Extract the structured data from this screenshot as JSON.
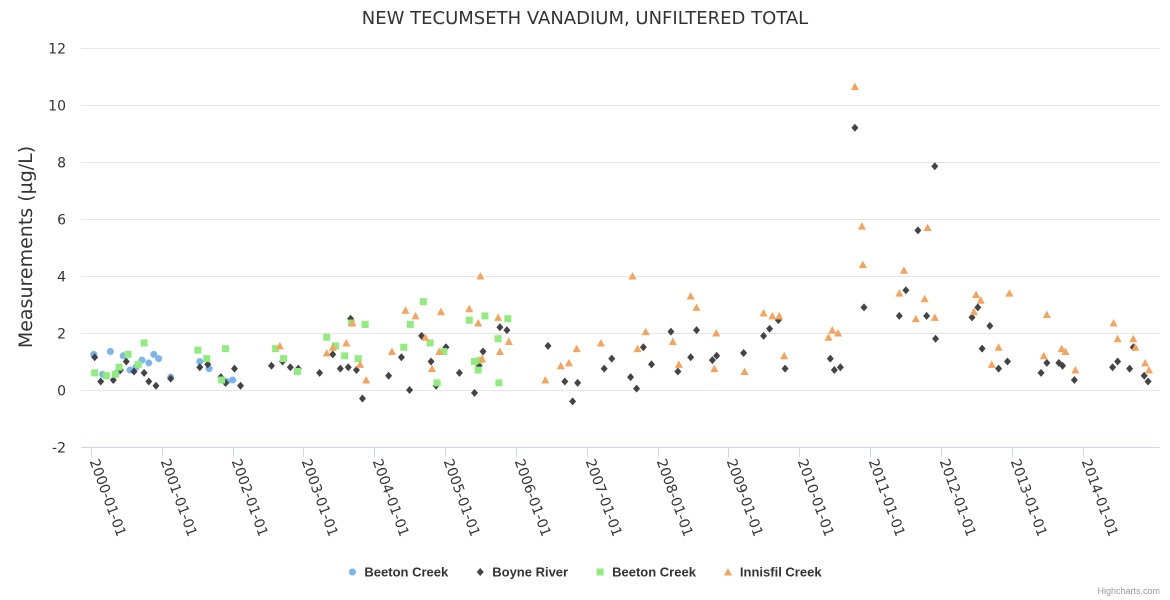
{
  "credits": "Highcharts.com",
  "chart_data": {
    "type": "scatter",
    "title": "NEW TECUMSETH VANADIUM, UNFILTERED TOTAL",
    "ylabel": "Measurements (µg/L)",
    "xlabel": "",
    "ylim": [
      -2,
      12
    ],
    "yticks": [
      -2,
      0,
      2,
      4,
      6,
      8,
      10,
      12
    ],
    "xlim": [
      "2000-01-01",
      "2014-12-15"
    ],
    "xticks": [
      "2000-01-01",
      "2001-01-01",
      "2002-01-01",
      "2003-01-01",
      "2004-01-01",
      "2005-01-01",
      "2006-01-01",
      "2007-01-01",
      "2008-01-01",
      "2009-01-01",
      "2010-01-01",
      "2011-01-01",
      "2012-01-01",
      "2013-01-01",
      "2014-01-01"
    ],
    "grid": true,
    "legend_position": "bottom-center",
    "series": [
      {
        "name": "Beeton Creek",
        "marker": "circle",
        "color": "#7cb5ec",
        "points": [
          [
            "2000-01-15",
            1.25
          ],
          [
            "2000-03-01",
            0.55
          ],
          [
            "2000-04-10",
            1.35
          ],
          [
            "2000-05-20",
            0.65
          ],
          [
            "2000-06-15",
            1.2
          ],
          [
            "2000-07-20",
            0.7
          ],
          [
            "2000-08-20",
            0.8
          ],
          [
            "2000-09-20",
            1.05
          ],
          [
            "2000-10-25",
            0.95
          ],
          [
            "2000-11-20",
            1.25
          ],
          [
            "2000-12-15",
            1.1
          ],
          [
            "2001-02-15",
            0.45
          ],
          [
            "2001-07-15",
            1.0
          ],
          [
            "2001-09-01",
            0.75
          ],
          [
            "2001-12-01",
            0.3
          ],
          [
            "2002-01-01",
            0.35
          ]
        ]
      },
      {
        "name": "Boyne River",
        "marker": "diamond",
        "color": "#434348",
        "points": [
          [
            "2000-01-20",
            1.15
          ],
          [
            "2000-02-20",
            0.3
          ],
          [
            "2000-04-25",
            0.35
          ],
          [
            "2000-06-01",
            0.7
          ],
          [
            "2000-07-01",
            1.0
          ],
          [
            "2000-08-10",
            0.65
          ],
          [
            "2000-10-01",
            0.6
          ],
          [
            "2000-10-25",
            0.3
          ],
          [
            "2000-12-01",
            0.15
          ],
          [
            "2001-02-15",
            0.4
          ],
          [
            "2001-07-15",
            0.8
          ],
          [
            "2001-08-25",
            0.9
          ],
          [
            "2001-11-01",
            0.45
          ],
          [
            "2001-11-25",
            0.25
          ],
          [
            "2002-01-10",
            0.75
          ],
          [
            "2002-02-10",
            0.15
          ],
          [
            "2002-07-20",
            0.85
          ],
          [
            "2002-09-15",
            1.0
          ],
          [
            "2002-10-25",
            0.8
          ],
          [
            "2002-12-05",
            0.75
          ],
          [
            "2003-03-25",
            0.6
          ],
          [
            "2003-06-01",
            1.25
          ],
          [
            "2003-07-10",
            0.75
          ],
          [
            "2003-08-20",
            0.8
          ],
          [
            "2003-09-01",
            2.5
          ],
          [
            "2003-10-01",
            0.7
          ],
          [
            "2003-11-01",
            -0.3
          ],
          [
            "2004-03-15",
            0.5
          ],
          [
            "2004-05-20",
            1.15
          ],
          [
            "2004-07-01",
            0.0
          ],
          [
            "2004-09-01",
            1.9
          ],
          [
            "2004-10-20",
            1.0
          ],
          [
            "2004-11-15",
            0.15
          ],
          [
            "2005-01-05",
            1.5
          ],
          [
            "2005-03-15",
            0.6
          ],
          [
            "2005-06-01",
            -0.1
          ],
          [
            "2005-06-25",
            0.85
          ],
          [
            "2005-07-15",
            1.35
          ],
          [
            "2005-10-10",
            2.2
          ],
          [
            "2005-11-15",
            2.1
          ],
          [
            "2006-06-15",
            1.55
          ],
          [
            "2006-09-10",
            0.3
          ],
          [
            "2006-10-20",
            -0.4
          ],
          [
            "2006-11-15",
            0.25
          ],
          [
            "2007-04-01",
            0.75
          ],
          [
            "2007-05-10",
            1.1
          ],
          [
            "2007-08-15",
            0.45
          ],
          [
            "2007-09-15",
            0.05
          ],
          [
            "2007-10-20",
            1.5
          ],
          [
            "2007-12-01",
            0.9
          ],
          [
            "2008-03-10",
            2.05
          ],
          [
            "2008-04-15",
            0.65
          ],
          [
            "2008-06-20",
            1.15
          ],
          [
            "2008-07-20",
            2.1
          ],
          [
            "2008-10-10",
            1.05
          ],
          [
            "2008-11-01",
            1.2
          ],
          [
            "2009-03-20",
            1.3
          ],
          [
            "2009-07-01",
            1.9
          ],
          [
            "2009-08-01",
            2.15
          ],
          [
            "2009-09-15",
            2.45
          ],
          [
            "2009-10-20",
            0.75
          ],
          [
            "2010-06-10",
            1.1
          ],
          [
            "2010-07-01",
            0.7
          ],
          [
            "2010-08-01",
            0.8
          ],
          [
            "2010-10-15",
            9.2
          ],
          [
            "2010-12-01",
            2.9
          ],
          [
            "2011-06-01",
            2.6
          ],
          [
            "2011-07-05",
            3.5
          ],
          [
            "2011-09-05",
            5.6
          ],
          [
            "2011-10-20",
            2.6
          ],
          [
            "2011-12-05",
            1.8
          ],
          [
            "2011-12-01",
            7.85
          ],
          [
            "2012-06-10",
            2.55
          ],
          [
            "2012-07-10",
            2.9
          ],
          [
            "2012-08-01",
            1.45
          ],
          [
            "2012-09-10",
            2.25
          ],
          [
            "2012-10-25",
            0.75
          ],
          [
            "2012-12-10",
            1.0
          ],
          [
            "2013-06-01",
            0.6
          ],
          [
            "2013-07-01",
            0.95
          ],
          [
            "2013-09-01",
            0.95
          ],
          [
            "2013-09-20",
            0.85
          ],
          [
            "2013-11-20",
            0.35
          ],
          [
            "2014-06-05",
            0.8
          ],
          [
            "2014-07-01",
            1.0
          ],
          [
            "2014-09-01",
            0.75
          ],
          [
            "2014-09-20",
            1.5
          ],
          [
            "2014-11-15",
            0.5
          ],
          [
            "2014-12-05",
            0.3
          ]
        ]
      },
      {
        "name": "Beeton Creek",
        "marker": "square",
        "color": "#90ed7d",
        "points": [
          [
            "2000-01-20",
            0.6
          ],
          [
            "2000-03-20",
            0.5
          ],
          [
            "2000-05-05",
            0.55
          ],
          [
            "2000-05-25",
            0.8
          ],
          [
            "2000-07-10",
            1.25
          ],
          [
            "2000-09-01",
            0.9
          ],
          [
            "2000-10-01",
            1.65
          ],
          [
            "2001-07-05",
            1.4
          ],
          [
            "2001-08-20",
            1.1
          ],
          [
            "2001-11-05",
            0.35
          ],
          [
            "2001-11-25",
            1.45
          ],
          [
            "2002-08-10",
            1.45
          ],
          [
            "2002-09-20",
            1.1
          ],
          [
            "2002-12-01",
            0.65
          ],
          [
            "2003-05-01",
            1.85
          ],
          [
            "2003-06-15",
            1.55
          ],
          [
            "2003-08-01",
            1.2
          ],
          [
            "2003-09-05",
            2.35
          ],
          [
            "2003-10-10",
            1.1
          ],
          [
            "2003-11-15",
            2.3
          ],
          [
            "2004-06-01",
            1.5
          ],
          [
            "2004-07-05",
            2.3
          ],
          [
            "2004-09-10",
            3.1
          ],
          [
            "2004-10-15",
            1.65
          ],
          [
            "2004-11-20",
            0.25
          ],
          [
            "2004-12-25",
            1.35
          ],
          [
            "2005-05-05",
            2.45
          ],
          [
            "2005-06-01",
            1.0
          ],
          [
            "2005-07-01",
            1.05
          ],
          [
            "2005-06-20",
            0.7
          ],
          [
            "2005-07-25",
            2.6
          ],
          [
            "2005-10-01",
            1.8
          ],
          [
            "2005-10-05",
            0.25
          ],
          [
            "2005-11-20",
            2.5
          ]
        ]
      },
      {
        "name": "Innisfil Creek",
        "marker": "triangle",
        "color": "#f7a35c",
        "points": [
          [
            "2002-09-01",
            1.55
          ],
          [
            "2003-05-01",
            1.3
          ],
          [
            "2003-06-01",
            1.5
          ],
          [
            "2003-08-10",
            1.65
          ],
          [
            "2003-09-10",
            2.35
          ],
          [
            "2003-10-20",
            0.9
          ],
          [
            "2003-11-20",
            0.35
          ],
          [
            "2004-04-01",
            1.35
          ],
          [
            "2004-06-10",
            2.8
          ],
          [
            "2004-08-01",
            2.6
          ],
          [
            "2004-09-20",
            1.85
          ],
          [
            "2004-10-25",
            0.75
          ],
          [
            "2004-12-01",
            1.35
          ],
          [
            "2004-12-10",
            2.75
          ],
          [
            "2005-05-05",
            2.85
          ],
          [
            "2005-06-20",
            2.35
          ],
          [
            "2005-07-10",
            1.1
          ],
          [
            "2005-07-01",
            4.0
          ],
          [
            "2005-10-01",
            2.55
          ],
          [
            "2005-10-10",
            1.35
          ],
          [
            "2005-11-25",
            1.7
          ],
          [
            "2006-06-01",
            0.35
          ],
          [
            "2006-08-20",
            0.85
          ],
          [
            "2006-10-01",
            0.95
          ],
          [
            "2006-11-10",
            1.45
          ],
          [
            "2007-03-15",
            1.65
          ],
          [
            "2007-08-25",
            4.0
          ],
          [
            "2007-09-20",
            1.45
          ],
          [
            "2007-11-01",
            2.05
          ],
          [
            "2008-03-20",
            1.7
          ],
          [
            "2008-04-20",
            0.9
          ],
          [
            "2008-06-20",
            3.3
          ],
          [
            "2008-07-20",
            2.9
          ],
          [
            "2008-10-20",
            0.75
          ],
          [
            "2008-10-30",
            2.0
          ],
          [
            "2009-03-25",
            0.65
          ],
          [
            "2009-07-01",
            2.7
          ],
          [
            "2009-08-15",
            2.6
          ],
          [
            "2009-09-20",
            2.6
          ],
          [
            "2009-10-15",
            1.2
          ],
          [
            "2010-06-01",
            1.85
          ],
          [
            "2010-06-20",
            2.1
          ],
          [
            "2010-07-20",
            2.0
          ],
          [
            "2010-10-15",
            10.65
          ],
          [
            "2010-11-20",
            5.75
          ],
          [
            "2010-11-25",
            4.4
          ],
          [
            "2011-06-01",
            3.4
          ],
          [
            "2011-06-25",
            4.2
          ],
          [
            "2011-08-25",
            2.5
          ],
          [
            "2011-10-10",
            3.2
          ],
          [
            "2011-10-25",
            5.7
          ],
          [
            "2011-12-01",
            2.55
          ],
          [
            "2012-06-20",
            2.75
          ],
          [
            "2012-07-01",
            3.35
          ],
          [
            "2012-07-25",
            3.15
          ],
          [
            "2012-09-20",
            0.9
          ],
          [
            "2012-10-25",
            1.5
          ],
          [
            "2012-12-20",
            3.4
          ],
          [
            "2013-06-15",
            1.2
          ],
          [
            "2013-07-01",
            2.65
          ],
          [
            "2013-09-15",
            1.45
          ],
          [
            "2013-10-05",
            1.35
          ],
          [
            "2013-11-25",
            0.7
          ],
          [
            "2014-06-10",
            2.35
          ],
          [
            "2014-07-01",
            1.8
          ],
          [
            "2014-09-20",
            1.8
          ],
          [
            "2014-10-01",
            1.5
          ],
          [
            "2014-11-20",
            0.95
          ],
          [
            "2014-12-10",
            0.7
          ]
        ]
      }
    ]
  }
}
